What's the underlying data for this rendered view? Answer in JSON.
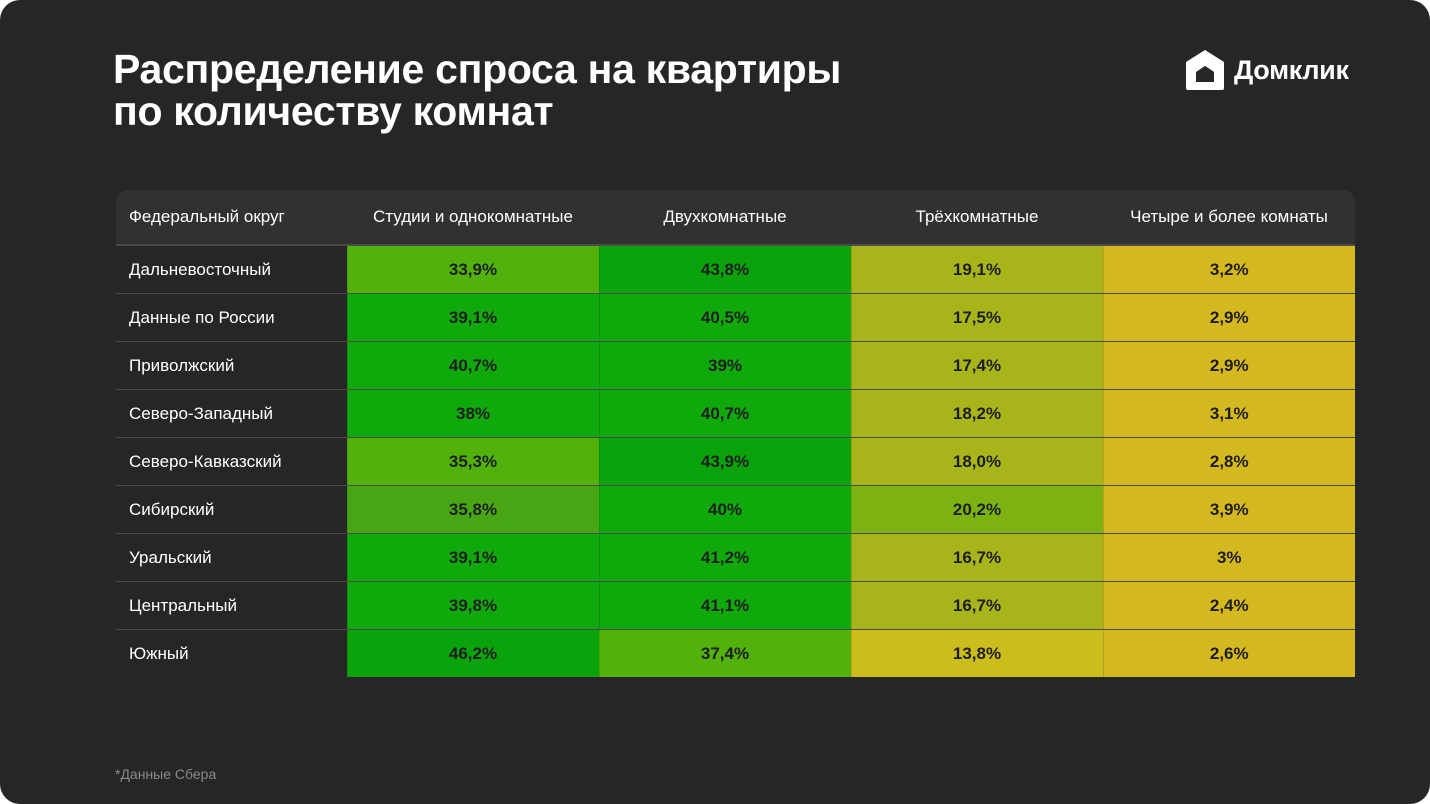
{
  "title_line1": "Распределение спроса на квартиры",
  "title_line2": "по количеству комнат",
  "brand": {
    "name": "Домклик",
    "logo_icon": "domclick-house-icon"
  },
  "footnote": "*Данные Сбера",
  "chart_data": {
    "type": "table",
    "columns": [
      "Федеральный округ",
      "Студии и однокомнатные",
      "Двухкомнатные",
      "Трёхкомнатные",
      "Четыре и более комнаты"
    ],
    "rows": [
      {
        "name": "Дальневосточный",
        "values": [
          "33,9%",
          "43,8%",
          "19,1%",
          "3,2%"
        ],
        "colors": [
          "#52b10b",
          "#0ba30b",
          "#a8b51a",
          "#d4b820"
        ]
      },
      {
        "name": "Данные по России",
        "values": [
          "39,1%",
          "40,5%",
          "17,5%",
          "2,9%"
        ],
        "colors": [
          "#10a90b",
          "#10a90b",
          "#a8b51a",
          "#d4b820"
        ]
      },
      {
        "name": "Приволжский",
        "values": [
          "40,7%",
          "39%",
          "17,4%",
          "2,9%"
        ],
        "colors": [
          "#10a90b",
          "#10a90b",
          "#a8b51a",
          "#d4b820"
        ]
      },
      {
        "name": "Северо-Западный",
        "values": [
          "38%",
          "40,7%",
          "18,2%",
          "3,1%"
        ],
        "colors": [
          "#10a90b",
          "#10a90b",
          "#a8b51a",
          "#d4b820"
        ]
      },
      {
        "name": "Северо-Кавказский",
        "values": [
          "35,3%",
          "43,9%",
          "18,0%",
          "2,8%"
        ],
        "colors": [
          "#52b10b",
          "#0ba30b",
          "#a8b51a",
          "#d4b820"
        ]
      },
      {
        "name": "Сибирский",
        "values": [
          "35,8%",
          "40%",
          "20,2%",
          "3,9%"
        ],
        "colors": [
          "#48a614",
          "#10a90b",
          "#7cb212",
          "#d4b820"
        ]
      },
      {
        "name": "Уральский",
        "values": [
          "39,1%",
          "41,2%",
          "16,7%",
          "3%"
        ],
        "colors": [
          "#10a90b",
          "#10a90b",
          "#a8b51a",
          "#d4b820"
        ]
      },
      {
        "name": "Центральный",
        "values": [
          "39,8%",
          "41,1%",
          "16,7%",
          "2,4%"
        ],
        "colors": [
          "#10a90b",
          "#10a90b",
          "#a8b51a",
          "#d4b820"
        ]
      },
      {
        "name": "Южный",
        "values": [
          "46,2%",
          "37,4%",
          "13,8%",
          "2,6%"
        ],
        "colors": [
          "#0ba30b",
          "#52b10b",
          "#ccbc1c",
          "#d4b820"
        ]
      }
    ]
  }
}
